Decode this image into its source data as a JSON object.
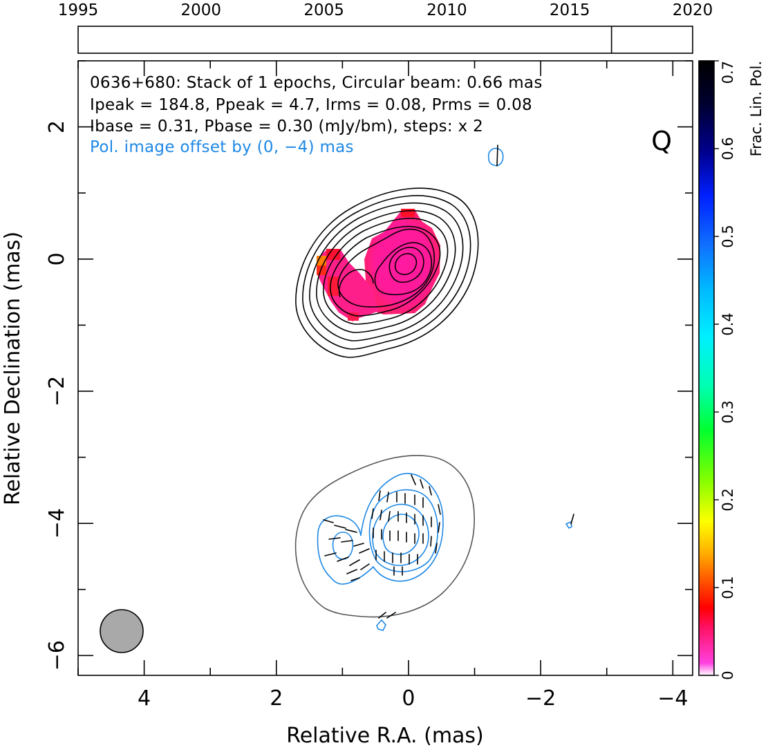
{
  "timeline": {
    "ticks": [
      "1995",
      "2000",
      "2005",
      "2010",
      "2015",
      "2020"
    ],
    "tick_values": [
      1995,
      2000,
      2005,
      2010,
      2015,
      2020
    ],
    "range": [
      1995,
      2020
    ],
    "epoch_marks": [
      2016.7
    ]
  },
  "header": {
    "line1": "0636+680: Stack of 1 epochs, Circular beam: 0.66 mas",
    "line2": "Ipeak = 184.8, Ppeak = 4.7, Irms = 0.08, Prms = 0.08",
    "line3": "Ibase = 0.31, Pbase = 0.30 (mJy/bm), steps: x 2",
    "line4": "Pol. image offset by (0, −4) mas",
    "band": "Q",
    "line4_color": "#1e88e5"
  },
  "chart_data": {
    "type": "contour",
    "xlabel": "Relative R.A. (mas)",
    "ylabel": "Relative Declination (mas)",
    "xlim": [
      5.0,
      -4.3
    ],
    "ylim": [
      -6.3,
      3.0
    ],
    "xticks": [
      "4",
      "2",
      "0",
      "−2",
      "−4"
    ],
    "xtick_values": [
      4,
      2,
      0,
      -2,
      -4
    ],
    "yticks": [
      "2",
      "0",
      "−2",
      "−4",
      "−6"
    ],
    "ytick_values": [
      2,
      0,
      -2,
      -4,
      -6
    ],
    "beam": {
      "ra": 4.3,
      "dec": -5.6,
      "diameter_mas": 0.66
    },
    "stokes_i_contours": {
      "center": [
        0,
        0
      ],
      "levels": 9,
      "color": "#000000"
    },
    "polarization_contours": {
      "center": [
        0,
        -4
      ],
      "color": "#1e88e5"
    },
    "outer_contour_color": "#555555"
  },
  "colorbar": {
    "label": "Frac. Lin. Pol.",
    "ticks": [
      "0",
      "0.1",
      "0.2",
      "0.3",
      "0.4",
      "0.5",
      "0.6",
      "0.7"
    ],
    "tick_values": [
      0,
      0.1,
      0.2,
      0.3,
      0.4,
      0.5,
      0.6,
      0.7
    ],
    "range": [
      0,
      0.7
    ]
  }
}
